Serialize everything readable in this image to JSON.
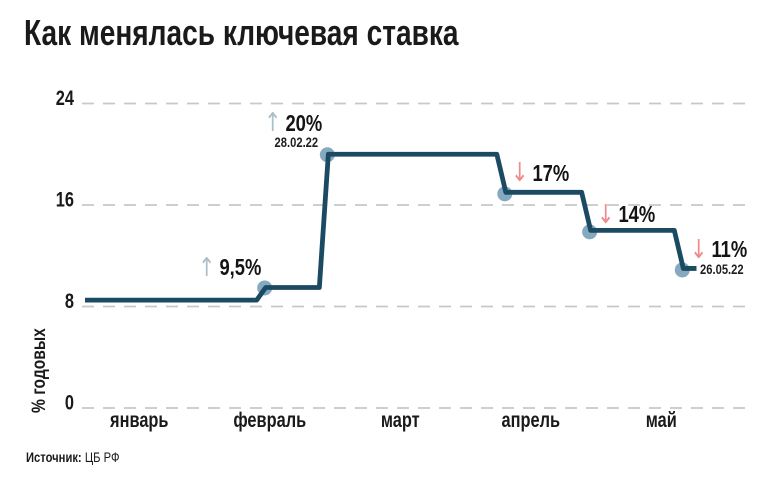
{
  "header": {
    "title": "Как менялась ключевая ставка"
  },
  "footer": {
    "source_label": "Источник:",
    "source_value": "ЦБ РФ"
  },
  "chart_data": {
    "type": "line",
    "title": "Как менялась ключевая ставка",
    "ylabel": "% годовых",
    "ylim": [
      0,
      24
    ],
    "y_ticks": [
      24,
      16,
      8,
      0
    ],
    "x_categories": [
      "январь",
      "февраль",
      "март",
      "апрель",
      "май"
    ],
    "grid": true,
    "line_color": "#1b4a63",
    "marker_color": "#85a9bf",
    "grid_color": "#c8c8c8",
    "up_color": "#a9bfca",
    "down_color": "#f28a8a",
    "start": {
      "x": 0.08,
      "rate": 8.5
    },
    "steps": [
      {
        "x": 1.4,
        "rate": 9.5,
        "label": "9,5%",
        "dir": "up",
        "date": ""
      },
      {
        "x": 1.88,
        "rate": 20,
        "label": "20%",
        "dir": "up",
        "date": "28.02.22"
      },
      {
        "x": 3.24,
        "rate": 17,
        "label": "17%",
        "dir": "down",
        "date": ""
      },
      {
        "x": 3.89,
        "rate": 14,
        "label": "14%",
        "dir": "down",
        "date": ""
      },
      {
        "x": 4.6,
        "rate": 11,
        "label": "11%",
        "dir": "down",
        "date": "26.05.22"
      }
    ],
    "x_end": 4.77
  }
}
